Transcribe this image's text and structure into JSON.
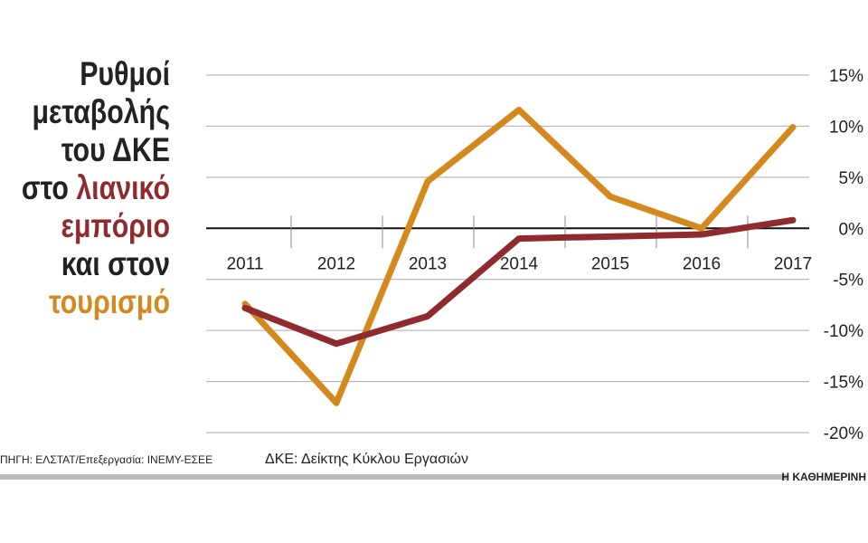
{
  "chart_data": {
    "type": "line",
    "title_lines": [
      [
        {
          "text": "Ρυθμοί"
        }
      ],
      [
        {
          "text": "μεταβολής"
        }
      ],
      [
        {
          "text": "του ΔΚΕ"
        }
      ],
      [
        {
          "text": "στο "
        },
        {
          "text": "λιανικό",
          "series": 0
        }
      ],
      [
        {
          "text": "εμπόριο",
          "series": 0
        }
      ],
      [
        {
          "text": "και στον"
        }
      ],
      [
        {
          "text": "τουρισμό",
          "series": 1
        }
      ]
    ],
    "categories": [
      "2011",
      "2012",
      "2013",
      "2014",
      "2015",
      "2016",
      "2017"
    ],
    "series": [
      {
        "color": "#8f2a2e",
        "values": [
          -7.8,
          -11.3,
          -8.6,
          -1.0,
          -0.8,
          -0.6,
          0.8
        ]
      },
      {
        "color": "#d4891f",
        "values": [
          -7.4,
          -17.1,
          4.6,
          11.6,
          3.1,
          0.0,
          9.9
        ]
      }
    ],
    "ylim": [
      -20,
      15
    ],
    "yticks": [
      {
        "value": 15,
        "label": "15%"
      },
      {
        "value": 10,
        "label": "10%"
      },
      {
        "value": 5,
        "label": "5%"
      },
      {
        "value": 0,
        "label": "0%"
      },
      {
        "value": -5,
        "label": "-5%"
      },
      {
        "value": -10,
        "label": "-10%"
      },
      {
        "value": -15,
        "label": "-15%"
      },
      {
        "value": -20,
        "label": "-20%"
      }
    ],
    "grid": true,
    "source": "ΠΗΓΗ: ΕΛΣΤΑΤ/Επεξεργασία: ΙΝΕΜΥ-ΕΣΕΕ",
    "note": "ΔΚΕ: Δείκτης Κύκλου Εργασιών",
    "publisher": "Η ΚΑΘΗΜΕΡΙΝΗ"
  }
}
